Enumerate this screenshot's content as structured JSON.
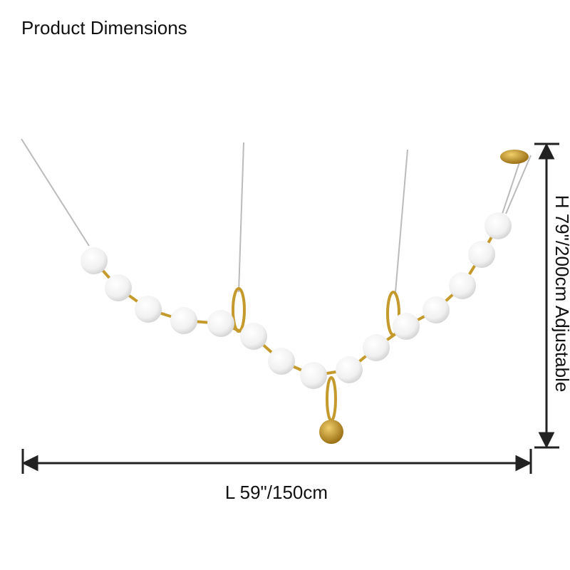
{
  "header": {
    "title": "Product Dimensions"
  },
  "dimensions": {
    "length": "L 59\"/150cm",
    "height": "H 79\"/200cm Adjustable"
  }
}
